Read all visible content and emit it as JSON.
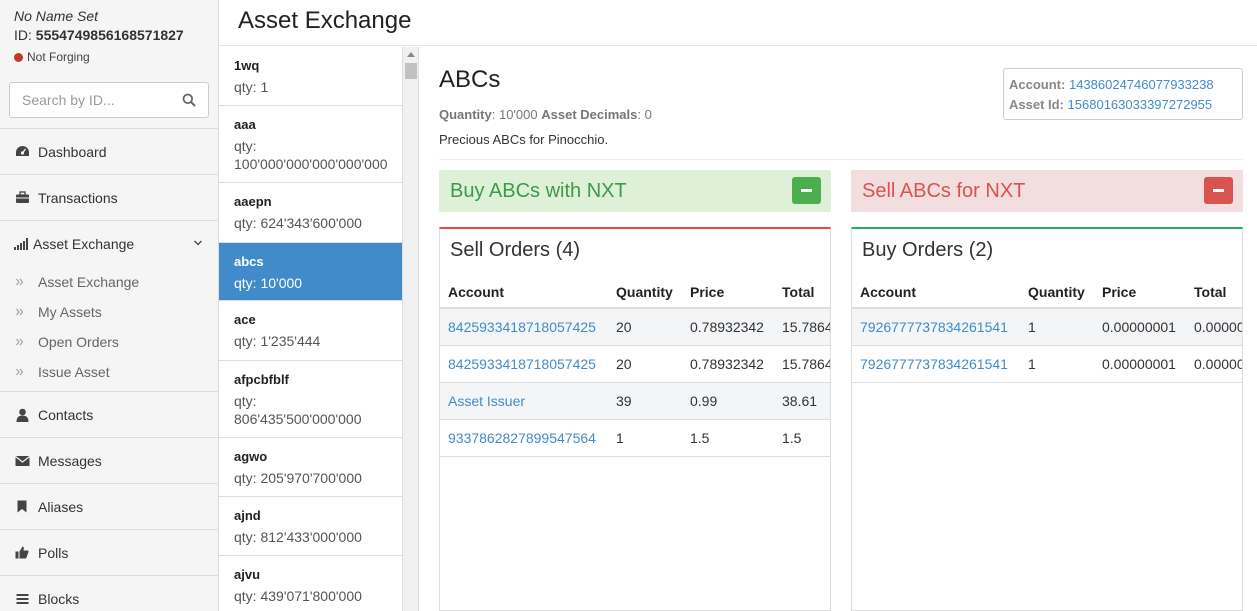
{
  "account": {
    "name": "No Name Set",
    "id_label": "ID:",
    "id": "5554749856168571827",
    "status": "Not Forging"
  },
  "search": {
    "placeholder": "Search by ID..."
  },
  "nav": {
    "dashboard": "Dashboard",
    "transactions": "Transactions",
    "asset_exchange": "Asset Exchange",
    "sub": [
      "Asset Exchange",
      "My Assets",
      "Open Orders",
      "Issue Asset"
    ],
    "contacts": "Contacts",
    "messages": "Messages",
    "aliases": "Aliases",
    "polls": "Polls",
    "blocks": "Blocks"
  },
  "header": {
    "title": "Asset Exchange"
  },
  "assets": [
    {
      "name": "1wq",
      "qty": "qty: 1"
    },
    {
      "name": "aaa",
      "qty": "qty: 100'000'000'000'000'000"
    },
    {
      "name": "aaepn",
      "qty": "qty: 624'343'600'000"
    },
    {
      "name": "abcs",
      "qty": "qty: 10'000"
    },
    {
      "name": "ace",
      "qty": "qty: 1'235'444"
    },
    {
      "name": "afpcbfblf",
      "qty": "qty: 806'435'500'000'000"
    },
    {
      "name": "agwo",
      "qty": "qty: 205'970'700'000"
    },
    {
      "name": "ajnd",
      "qty": "qty: 812'433'000'000"
    },
    {
      "name": "ajvu",
      "qty": "qty: 439'071'800'000"
    }
  ],
  "detail": {
    "title": "ABCs",
    "quantity_label": "Quantity",
    "quantity": "10'000",
    "decimals_label": "Asset Decimals",
    "decimals": "0",
    "description": "Precious ABCs for Pinocchio.",
    "account_label": "Account",
    "account": "14386024746077933238",
    "asset_id_label": "Asset Id",
    "asset_id": "15680163033397272955",
    "buy_label": "Buy ABCs with NXT",
    "sell_label": "Sell ABCs for NXT"
  },
  "sell_orders": {
    "title": "Sell Orders (4)",
    "headers": [
      "Account",
      "Quantity",
      "Price",
      "Total"
    ],
    "rows": [
      [
        "8425933418718057425",
        "20",
        "0.78932342",
        "15.7864"
      ],
      [
        "8425933418718057425",
        "20",
        "0.78932342",
        "15.7864"
      ],
      [
        "Asset Issuer",
        "39",
        "0.99",
        "38.61"
      ],
      [
        "9337862827899547564",
        "1",
        "1.5",
        "1.5"
      ]
    ]
  },
  "buy_orders": {
    "title": "Buy Orders (2)",
    "headers": [
      "Account",
      "Quantity",
      "Price",
      "Total"
    ],
    "rows": [
      [
        "7926777737834261541",
        "1",
        "0.00000001",
        "0.00000"
      ],
      [
        "7926777737834261541",
        "1",
        "0.00000001",
        "0.00000"
      ]
    ]
  },
  "colors": {
    "primary": "#428bca",
    "success": "#4cae4c",
    "danger": "#d9534f",
    "forging_off": "#c0392b"
  }
}
